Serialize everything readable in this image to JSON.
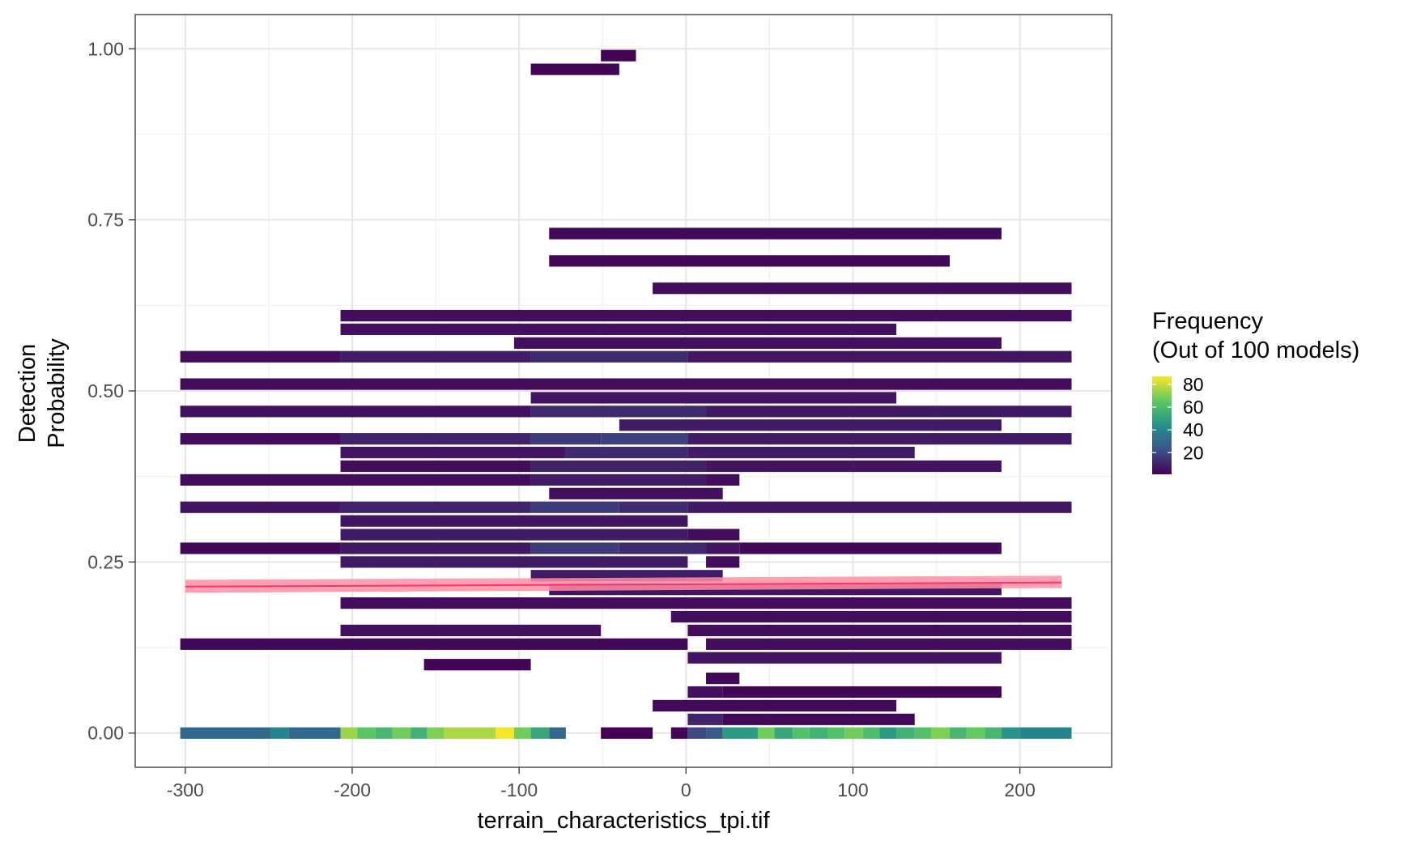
{
  "chart_data": {
    "type": "heatmap",
    "xlabel": "terrain_characteristics_tpi.tif",
    "ylabel_lines": [
      "Detection",
      "Probability"
    ],
    "xlim": [
      -330,
      255
    ],
    "ylim": [
      -0.05,
      1.05
    ],
    "x_ticks": [
      -300,
      -200,
      -100,
      0,
      100,
      200
    ],
    "x_tick_labels": [
      "-300",
      "-200",
      "-100",
      "0",
      "100",
      "200"
    ],
    "y_ticks": [
      0,
      0.25,
      0.5,
      0.75,
      1.0
    ],
    "y_tick_labels": [
      "0.00",
      "0.25",
      "0.50",
      "0.75",
      "1.00"
    ],
    "grid": true,
    "legend": {
      "position": "right",
      "title_lines": [
        "Frequency",
        "(Out of 100 models)"
      ],
      "ticks": [
        20,
        40,
        60,
        80
      ],
      "tick_labels": [
        "20",
        "40",
        "60",
        "80"
      ],
      "range": [
        1,
        87
      ],
      "colors": [
        "#440154",
        "#3b528b",
        "#21918c",
        "#5ec962",
        "#fde725"
      ]
    },
    "bin_width": 10.5,
    "bin_height": 0.02,
    "cells": [
      {
        "y": 0.0,
        "x0": -303,
        "x1": -249,
        "f": 30
      },
      {
        "y": 0.0,
        "x0": -249,
        "x1": -238,
        "f": 40
      },
      {
        "y": 0.0,
        "x0": -238,
        "x1": -207,
        "f": 30
      },
      {
        "y": 0.0,
        "x0": -207,
        "x1": -197,
        "f": 74
      },
      {
        "y": 0.0,
        "x0": -197,
        "x1": -186,
        "f": 64
      },
      {
        "y": 0.0,
        "x0": -186,
        "x1": -176,
        "f": 58
      },
      {
        "y": 0.0,
        "x0": -176,
        "x1": -165,
        "f": 68
      },
      {
        "y": 0.0,
        "x0": -165,
        "x1": -155,
        "f": 56
      },
      {
        "y": 0.0,
        "x0": -155,
        "x1": -145,
        "f": 70
      },
      {
        "y": 0.0,
        "x0": -145,
        "x1": -114,
        "f": 76
      },
      {
        "y": 0.0,
        "x0": -114,
        "x1": -103,
        "f": 86
      },
      {
        "y": 0.0,
        "x0": -103,
        "x1": -93,
        "f": 68
      },
      {
        "y": 0.0,
        "x0": -93,
        "x1": -82,
        "f": 52
      },
      {
        "y": 0.0,
        "x0": -82,
        "x1": -72,
        "f": 30
      },
      {
        "y": 0.0,
        "x0": -51,
        "x1": -20,
        "f": 1
      },
      {
        "y": 0.0,
        "x0": -9,
        "x1": 1,
        "f": 2
      },
      {
        "y": 0.0,
        "x0": 1,
        "x1": 12,
        "f": 20
      },
      {
        "y": 0.0,
        "x0": 12,
        "x1": 22,
        "f": 26
      },
      {
        "y": 0.0,
        "x0": 22,
        "x1": 43,
        "f": 48
      },
      {
        "y": 0.0,
        "x0": 43,
        "x1": 53,
        "f": 68
      },
      {
        "y": 0.0,
        "x0": 53,
        "x1": 64,
        "f": 52
      },
      {
        "y": 0.0,
        "x0": 64,
        "x1": 74,
        "f": 62
      },
      {
        "y": 0.0,
        "x0": 74,
        "x1": 85,
        "f": 56
      },
      {
        "y": 0.0,
        "x0": 85,
        "x1": 95,
        "f": 62
      },
      {
        "y": 0.0,
        "x0": 95,
        "x1": 106,
        "f": 68
      },
      {
        "y": 0.0,
        "x0": 106,
        "x1": 116,
        "f": 60
      },
      {
        "y": 0.0,
        "x0": 116,
        "x1": 126,
        "f": 48
      },
      {
        "y": 0.0,
        "x0": 126,
        "x1": 137,
        "f": 56
      },
      {
        "y": 0.0,
        "x0": 137,
        "x1": 147,
        "f": 62
      },
      {
        "y": 0.0,
        "x0": 147,
        "x1": 158,
        "f": 70
      },
      {
        "y": 0.0,
        "x0": 158,
        "x1": 168,
        "f": 58
      },
      {
        "y": 0.0,
        "x0": 168,
        "x1": 179,
        "f": 66
      },
      {
        "y": 0.0,
        "x0": 179,
        "x1": 189,
        "f": 58
      },
      {
        "y": 0.0,
        "x0": 189,
        "x1": 200,
        "f": 46
      },
      {
        "y": 0.0,
        "x0": 200,
        "x1": 231,
        "f": 40
      },
      {
        "y": 0.02,
        "x0": 1,
        "x1": 22,
        "f": 10
      },
      {
        "y": 0.02,
        "x0": 22,
        "x1": 137,
        "f": 3
      },
      {
        "y": 0.04,
        "x0": -20,
        "x1": 126,
        "f": 3
      },
      {
        "y": 0.06,
        "x0": 1,
        "x1": 22,
        "f": 5
      },
      {
        "y": 0.06,
        "x0": 22,
        "x1": 189,
        "f": 2
      },
      {
        "y": 0.08,
        "x0": 12,
        "x1": 32,
        "f": 3
      },
      {
        "y": 0.1,
        "x0": -157,
        "x1": -93,
        "f": 2
      },
      {
        "y": 0.11,
        "x0": 1,
        "x1": 189,
        "f": 6
      },
      {
        "y": 0.13,
        "x0": -303,
        "x1": 1,
        "f": 3
      },
      {
        "y": 0.13,
        "x0": 12,
        "x1": 231,
        "f": 4
      },
      {
        "y": 0.15,
        "x0": -207,
        "x1": -51,
        "f": 5
      },
      {
        "y": 0.15,
        "x0": 1,
        "x1": 231,
        "f": 4
      },
      {
        "y": 0.17,
        "x0": -9,
        "x1": 231,
        "f": 4
      },
      {
        "y": 0.19,
        "x0": -207,
        "x1": 231,
        "f": 4
      },
      {
        "y": 0.21,
        "x0": -82,
        "x1": 189,
        "f": 6
      },
      {
        "y": 0.23,
        "x0": -93,
        "x1": 22,
        "f": 8
      },
      {
        "y": 0.25,
        "x0": -207,
        "x1": 1,
        "f": 8
      },
      {
        "y": 0.25,
        "x0": 12,
        "x1": 32,
        "f": 4
      },
      {
        "y": 0.27,
        "x0": -303,
        "x1": -207,
        "f": 3
      },
      {
        "y": 0.27,
        "x0": -207,
        "x1": -93,
        "f": 7
      },
      {
        "y": 0.27,
        "x0": -93,
        "x1": -40,
        "f": 16
      },
      {
        "y": 0.27,
        "x0": -40,
        "x1": 12,
        "f": 12
      },
      {
        "y": 0.27,
        "x0": 12,
        "x1": 32,
        "f": 6
      },
      {
        "y": 0.27,
        "x0": 32,
        "x1": 189,
        "f": 3
      },
      {
        "y": 0.29,
        "x0": -207,
        "x1": 1,
        "f": 8
      },
      {
        "y": 0.29,
        "x0": 1,
        "x1": 32,
        "f": 4
      },
      {
        "y": 0.31,
        "x0": -207,
        "x1": 1,
        "f": 6
      },
      {
        "y": 0.33,
        "x0": -303,
        "x1": -207,
        "f": 6
      },
      {
        "y": 0.33,
        "x0": -207,
        "x1": -93,
        "f": 10
      },
      {
        "y": 0.33,
        "x0": -93,
        "x1": -40,
        "f": 16
      },
      {
        "y": 0.33,
        "x0": -40,
        "x1": 1,
        "f": 12
      },
      {
        "y": 0.33,
        "x0": 1,
        "x1": 231,
        "f": 7
      },
      {
        "y": 0.35,
        "x0": -82,
        "x1": 22,
        "f": 5
      },
      {
        "y": 0.37,
        "x0": -303,
        "x1": -93,
        "f": 4
      },
      {
        "y": 0.37,
        "x0": -93,
        "x1": 12,
        "f": 8
      },
      {
        "y": 0.37,
        "x0": 12,
        "x1": 32,
        "f": 4
      },
      {
        "y": 0.39,
        "x0": -207,
        "x1": -93,
        "f": 4
      },
      {
        "y": 0.39,
        "x0": -93,
        "x1": 12,
        "f": 10
      },
      {
        "y": 0.39,
        "x0": 12,
        "x1": 189,
        "f": 6
      },
      {
        "y": 0.41,
        "x0": -207,
        "x1": -72,
        "f": 6
      },
      {
        "y": 0.41,
        "x0": -72,
        "x1": 1,
        "f": 12
      },
      {
        "y": 0.41,
        "x0": 1,
        "x1": 137,
        "f": 8
      },
      {
        "y": 0.43,
        "x0": -303,
        "x1": -207,
        "f": 4
      },
      {
        "y": 0.43,
        "x0": -207,
        "x1": -93,
        "f": 10
      },
      {
        "y": 0.43,
        "x0": -93,
        "x1": -51,
        "f": 16
      },
      {
        "y": 0.43,
        "x0": -51,
        "x1": 1,
        "f": 18
      },
      {
        "y": 0.43,
        "x0": 1,
        "x1": 231,
        "f": 8
      },
      {
        "y": 0.45,
        "x0": -40,
        "x1": 189,
        "f": 8
      },
      {
        "y": 0.47,
        "x0": -303,
        "x1": -93,
        "f": 5
      },
      {
        "y": 0.47,
        "x0": -93,
        "x1": 12,
        "f": 12
      },
      {
        "y": 0.47,
        "x0": 12,
        "x1": 231,
        "f": 7
      },
      {
        "y": 0.49,
        "x0": -93,
        "x1": 126,
        "f": 6
      },
      {
        "y": 0.51,
        "x0": -303,
        "x1": 231,
        "f": 4
      },
      {
        "y": 0.55,
        "x0": -303,
        "x1": -207,
        "f": 4
      },
      {
        "y": 0.55,
        "x0": -207,
        "x1": -93,
        "f": 8
      },
      {
        "y": 0.55,
        "x0": -93,
        "x1": 1,
        "f": 12
      },
      {
        "y": 0.55,
        "x0": 1,
        "x1": 231,
        "f": 6
      },
      {
        "y": 0.57,
        "x0": -103,
        "x1": 189,
        "f": 5
      },
      {
        "y": 0.59,
        "x0": -207,
        "x1": 126,
        "f": 5
      },
      {
        "y": 0.61,
        "x0": -207,
        "x1": 231,
        "f": 4
      },
      {
        "y": 0.65,
        "x0": -20,
        "x1": 231,
        "f": 4
      },
      {
        "y": 0.69,
        "x0": -82,
        "x1": 158,
        "f": 3
      },
      {
        "y": 0.73,
        "x0": -82,
        "x1": 189,
        "f": 3
      },
      {
        "y": 0.97,
        "x0": -93,
        "x1": -40,
        "f": 2
      },
      {
        "y": 0.99,
        "x0": -51,
        "x1": -30,
        "f": 2
      }
    ],
    "trend_line": {
      "x": [
        -300,
        225
      ],
      "fit": [
        0.214,
        0.22
      ],
      "lower": [
        0.205,
        0.212
      ],
      "upper": [
        0.224,
        0.23
      ],
      "line_color": "#ff2e7a",
      "ribbon_color": "#ff8fa3"
    }
  }
}
